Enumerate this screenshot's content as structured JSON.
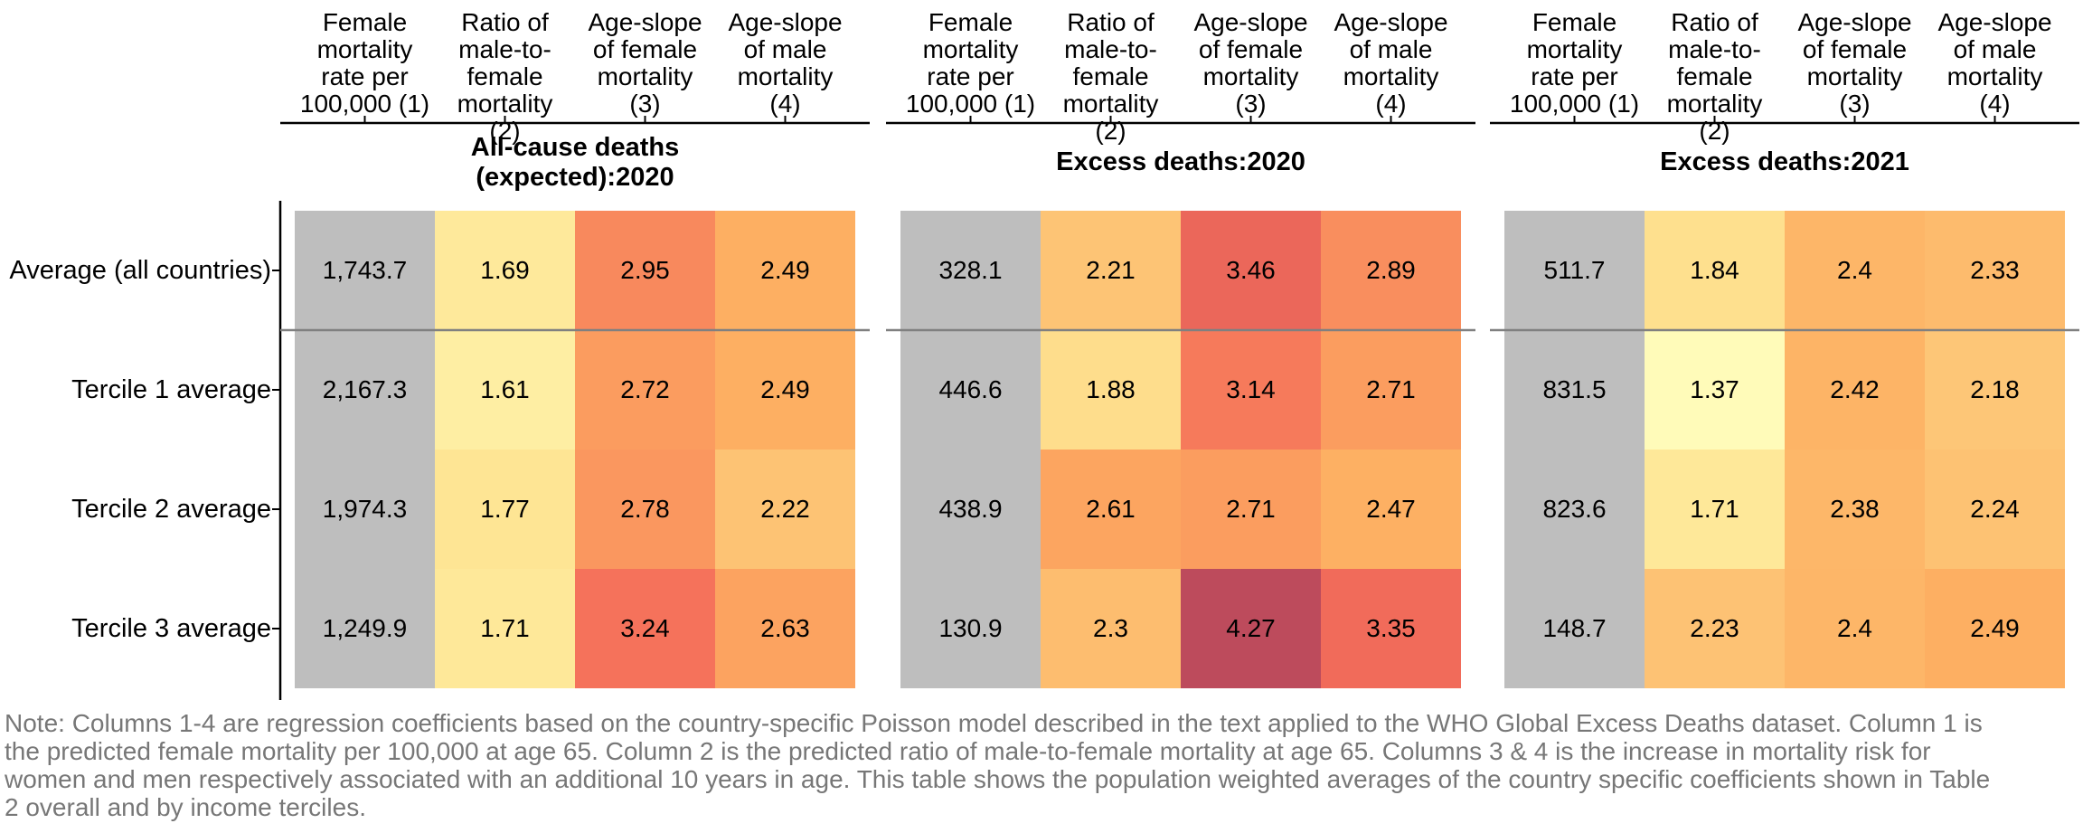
{
  "chart_data": {
    "type": "heatmap",
    "column_headers": [
      "Female mortality rate per 100,000 (1)",
      "Ratio of male-to-female mortality (2)",
      "Age-slope of female mortality (3)",
      "Age-slope of male mortality (4)"
    ],
    "column_header_lines": [
      [
        "Female",
        "mortality",
        "rate per",
        "100,000 (1)"
      ],
      [
        "Ratio of",
        "male-to-female",
        "mortality",
        "(2)"
      ],
      [
        "Age-slope",
        "of female",
        "mortality",
        "(3)"
      ],
      [
        "Age-slope",
        "of male",
        "mortality",
        "(4)"
      ]
    ],
    "rows": [
      "Average (all countries)",
      "Tercile 1 average",
      "Tercile 2 average",
      "Tercile 3 average"
    ],
    "panels": [
      {
        "title": "All-cause deaths (expected):2020",
        "title_lines": [
          "All-cause deaths",
          "(expected):2020"
        ],
        "values": [
          [
            "1,743.7",
            "1.69",
            "2.95",
            "2.49"
          ],
          [
            "2,167.3",
            "1.61",
            "2.72",
            "2.49"
          ],
          [
            "1,974.3",
            "1.77",
            "2.78",
            "2.22"
          ],
          [
            "1,249.9",
            "1.71",
            "3.24",
            "2.63"
          ]
        ]
      },
      {
        "title": "Excess deaths:2020",
        "title_lines": [
          "Excess deaths:2020"
        ],
        "values": [
          [
            "328.1",
            "2.21",
            "3.46",
            "2.89"
          ],
          [
            "446.6",
            "1.88",
            "3.14",
            "2.71"
          ],
          [
            "438.9",
            "2.61",
            "2.71",
            "2.47"
          ],
          [
            "130.9",
            "2.3",
            "4.27",
            "3.35"
          ]
        ]
      },
      {
        "title": "Excess deaths:2021",
        "title_lines": [
          "Excess deaths:2021"
        ],
        "values": [
          [
            "511.7",
            "1.84",
            "2.4",
            "2.33"
          ],
          [
            "831.5",
            "1.37",
            "2.42",
            "2.18"
          ],
          [
            "823.6",
            "1.71",
            "2.38",
            "2.24"
          ],
          [
            "148.7",
            "2.23",
            "2.4",
            "2.49"
          ]
        ]
      }
    ],
    "colors": {
      "first_column": "#bebebe",
      "scale_low": "#ffffc0",
      "scale_mid1": "#fee391",
      "scale_mid2": "#fdae61",
      "scale_mid3": "#f46d5a",
      "scale_high": "#bb4a5c",
      "separator": "#808080"
    },
    "separator_after_row": 0
  },
  "note": "Note: Columns 1-4 are regression coefficients based on the country-specific Poisson model described in the text applied to the WHO Global Excess Deaths dataset. Column 1 is the predicted female mortality per 100,000 at age 65. Column 2 is the predicted ratio of male-to-female mortality at age 65. Columns 3 & 4 is the increase in mortality risk for women and men respectively associated with an additional 10 years in age. This table shows the population weighted averages of the country specific coefficients shown in Table 2 overall and by income terciles."
}
